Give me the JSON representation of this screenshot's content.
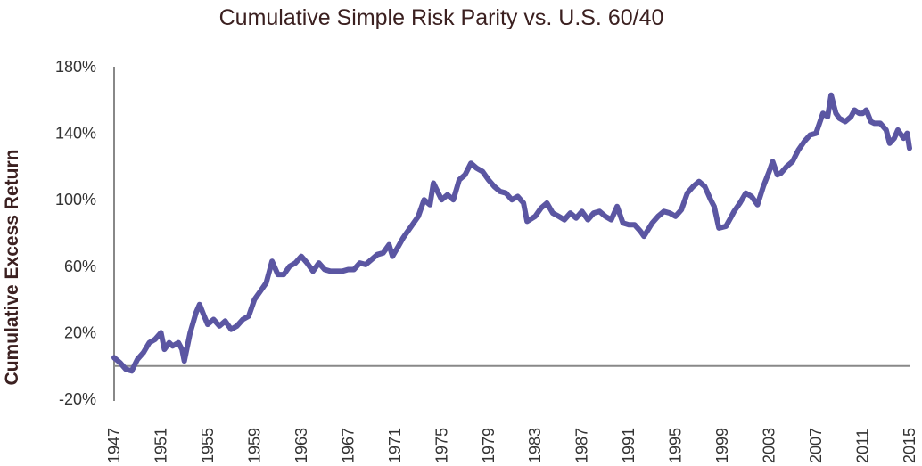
{
  "chart_data": {
    "type": "line",
    "title": "Cumulative Simple Risk Parity vs. U.S. 60/40",
    "xlabel": "",
    "ylabel": "Cumulative Excess Return",
    "xlim": [
      1947,
      2015
    ],
    "ylim": [
      -20,
      180
    ],
    "y_ticks": [
      "-20%",
      "20%",
      "60%",
      "100%",
      "140%",
      "180%"
    ],
    "y_tick_values": [
      -20,
      20,
      60,
      100,
      140,
      180
    ],
    "x_ticks": [
      "1947",
      "1951",
      "1955",
      "1959",
      "1963",
      "1967",
      "1971",
      "1975",
      "1979",
      "1983",
      "1987",
      "1991",
      "1995",
      "1999",
      "2003",
      "2007",
      "2011",
      "2015"
    ],
    "grid": false,
    "zero_line": true,
    "line_color": "#5b56a2",
    "series": [
      {
        "x": [
          1947.0,
          1947.5,
          1948.0,
          1948.5,
          1949.0,
          1949.5,
          1950.0,
          1950.5,
          1951.0,
          1951.3,
          1951.7,
          1952.0,
          1952.5,
          1952.8,
          1953.0,
          1953.5,
          1954.0,
          1954.3,
          1954.7,
          1955.0,
          1955.5,
          1956.0,
          1956.5,
          1957.0,
          1957.5,
          1958.0,
          1958.5,
          1959.0,
          1959.5,
          1960.0,
          1960.5,
          1961.0,
          1961.5,
          1962.0,
          1962.5,
          1963.0,
          1963.5,
          1964.0,
          1964.5,
          1965.0,
          1965.5,
          1966.0,
          1966.5,
          1967.0,
          1967.5,
          1968.0,
          1968.5,
          1969.0,
          1969.5,
          1970.0,
          1970.5,
          1970.8,
          1971.3,
          1971.7,
          1972.0,
          1972.5,
          1973.0,
          1973.5,
          1974.0,
          1974.3,
          1975.0,
          1975.5,
          1976.0,
          1976.5,
          1977.0,
          1977.5,
          1978.0,
          1978.5,
          1979.0,
          1979.5,
          1980.0,
          1980.5,
          1981.0,
          1981.5,
          1982.0,
          1982.3,
          1983.0,
          1983.5,
          1984.0,
          1984.5,
          1985.0,
          1985.5,
          1986.0,
          1986.5,
          1987.0,
          1987.5,
          1988.0,
          1988.5,
          1989.0,
          1989.5,
          1990.0,
          1990.5,
          1991.0,
          1991.5,
          1992.0,
          1992.3,
          1993.0,
          1993.5,
          1994.0,
          1994.5,
          1995.0,
          1995.5,
          1996.0,
          1996.5,
          1997.0,
          1997.5,
          1998.0,
          1998.3,
          1998.7,
          1999.3,
          1999.7,
          2000.0,
          2000.5,
          2001.0,
          2001.5,
          2002.0,
          2002.5,
          2003.0,
          2003.3,
          2003.7,
          2004.0,
          2004.5,
          2005.0,
          2005.5,
          2006.0,
          2006.5,
          2007.0,
          2007.6,
          2008.0,
          2008.3,
          2008.7,
          2009.0,
          2009.5,
          2010.0,
          2010.3,
          2010.7,
          2011.0,
          2011.3,
          2011.7,
          2012.0,
          2012.5,
          2013.0,
          2013.3,
          2013.7,
          2014.0,
          2014.5,
          2014.8,
          2015.0
        ],
        "y": [
          5,
          2,
          -2,
          -3,
          4,
          8,
          14,
          16,
          20,
          10,
          14,
          12,
          14,
          10,
          3,
          20,
          32,
          37,
          30,
          25,
          28,
          24,
          27,
          22,
          24,
          28,
          30,
          40,
          45,
          50,
          63,
          55,
          55,
          60,
          62,
          66,
          62,
          57,
          62,
          58,
          57,
          57,
          57,
          58,
          58,
          62,
          61,
          64,
          67,
          68,
          73,
          66,
          72,
          77,
          80,
          85,
          90,
          100,
          97,
          110,
          100,
          103,
          100,
          112,
          115,
          122,
          119,
          117,
          112,
          108,
          105,
          104,
          100,
          102,
          98,
          87,
          90,
          95,
          98,
          92,
          90,
          88,
          92,
          89,
          93,
          88,
          92,
          93,
          90,
          88,
          96,
          86,
          85,
          85,
          81,
          78,
          86,
          90,
          93,
          92,
          90,
          94,
          104,
          108,
          111,
          108,
          100,
          96,
          83,
          84,
          89,
          93,
          98,
          104,
          102,
          97,
          108,
          117,
          123,
          115,
          116,
          120,
          123,
          130,
          135,
          139,
          140,
          152,
          150,
          163,
          152,
          149,
          147,
          150,
          154,
          152,
          152,
          154,
          147,
          146,
          146,
          142,
          134,
          137,
          142,
          137,
          140,
          131
        ]
      }
    ]
  }
}
